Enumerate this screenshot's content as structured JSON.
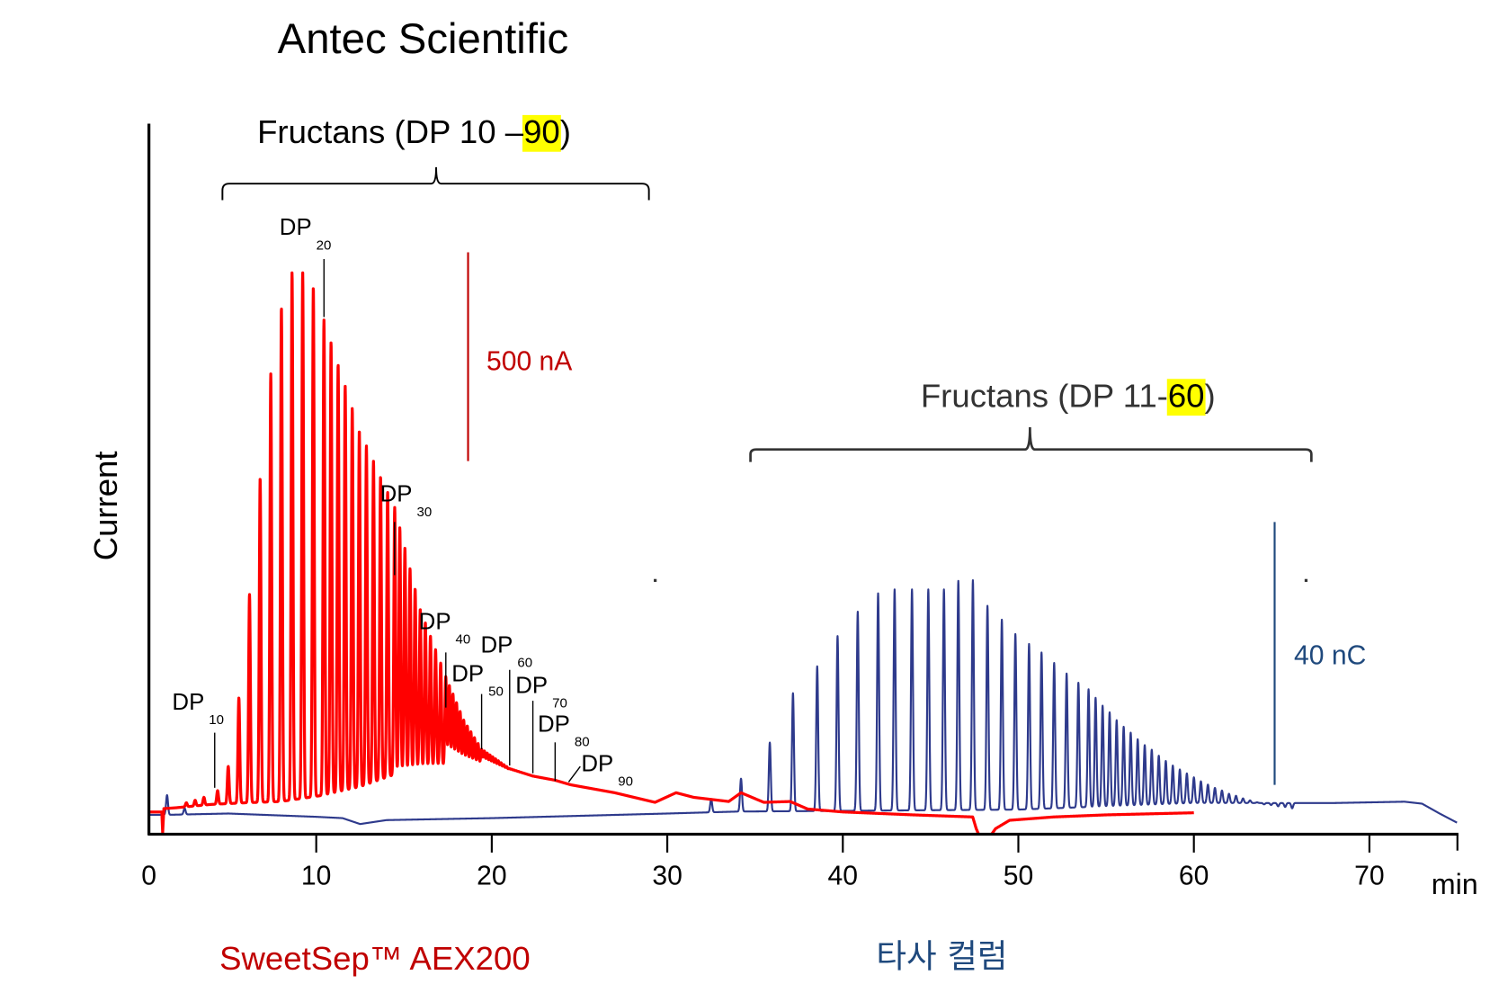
{
  "chart_data": {
    "type": "line",
    "title": "Antec Scientific",
    "ylabel": "Current",
    "xlabel": "min",
    "xlim": [
      0,
      75
    ],
    "x_ticks": [
      "0",
      "10",
      "20",
      "30",
      "40",
      "50",
      "60",
      "70"
    ],
    "x_tick_values": [
      0,
      10,
      20,
      30,
      40,
      50,
      60,
      70
    ],
    "grid": false,
    "legend": {
      "left": "SweetSep™ AEX200",
      "right": "타사 컬럼"
    },
    "colors": {
      "red_series": "#ff0000",
      "red_text": "#c00000",
      "blue_series": "#2e3a8c",
      "blue_text": "#1f497d",
      "highlight": "#ffff00"
    },
    "annotations": {
      "red_group": {
        "prefix": "Fructans (DP 10 – ",
        "highlight": "90",
        "suffix": ")"
      },
      "blue_group": {
        "prefix": "Fructans (DP 11-",
        "highlight": "60",
        "suffix": ")"
      },
      "red_scale": {
        "label": "500 nA",
        "value": 500,
        "unit": "nA"
      },
      "blue_scale": {
        "label": "40 nC",
        "value": 40,
        "unit": "nC"
      },
      "dp_labels": [
        {
          "dp": 10,
          "main": "DP",
          "sub": "10"
        },
        {
          "dp": 20,
          "main": "DP",
          "sub": "20"
        },
        {
          "dp": 30,
          "main": "DP",
          "sub": "30"
        },
        {
          "dp": 40,
          "main": "DP",
          "sub": "40"
        },
        {
          "dp": 50,
          "main": "DP",
          "sub": "50"
        },
        {
          "dp": 60,
          "main": "DP",
          "sub": "60"
        },
        {
          "dp": 70,
          "main": "DP",
          "sub": "70"
        },
        {
          "dp": 80,
          "main": "DP",
          "sub": "80"
        },
        {
          "dp": 90,
          "main": "DP",
          "sub": "90"
        }
      ]
    },
    "series": [
      {
        "name": "SweetSep™ AEX200",
        "unit": "nA",
        "dp_range": [
          10,
          90
        ],
        "dp_retention_time_anchors": [
          [
            10,
            4.38
          ],
          [
            20,
            10.44
          ],
          [
            30,
            14.47
          ],
          [
            40,
            17.38
          ],
          [
            50,
            19.42
          ],
          [
            60,
            21.0
          ],
          [
            70,
            22.33
          ],
          [
            80,
            23.6
          ],
          [
            90,
            24.5
          ]
        ],
        "dp_peak_height_envelope": [
          [
            10,
            51
          ],
          [
            11,
            109
          ],
          [
            12,
            273
          ],
          [
            13,
            521
          ],
          [
            14,
            799
          ],
          [
            15,
            1049
          ],
          [
            16,
            1208
          ],
          [
            17,
            1292
          ],
          [
            18,
            1292
          ],
          [
            19,
            1257
          ],
          [
            20,
            1178
          ],
          [
            25,
            914
          ],
          [
            30,
            729
          ],
          [
            35,
            486
          ],
          [
            40,
            324
          ],
          [
            45,
            220
          ],
          [
            50,
            150
          ],
          [
            60,
            104
          ],
          [
            70,
            86
          ],
          [
            80,
            76
          ],
          [
            90,
            65
          ]
        ],
        "minor_peaks": [
          [
            2.6,
            22
          ],
          [
            3.1,
            28
          ],
          [
            3.6,
            35
          ]
        ],
        "baseline": [
          [
            [
              0.47,
              0
            ],
            [
              1.2,
              0
            ],
            [
              1.25,
              -50
            ],
            [
              1.32,
              8
            ],
            [
              2,
              10
            ],
            [
              4,
              18
            ],
            [
              6,
              22
            ],
            [
              8,
              25
            ],
            [
              10.4,
              40
            ],
            [
              12.5,
              60
            ],
            [
              14.5,
              90
            ],
            [
              16,
              105
            ],
            [
              17.4,
              110
            ],
            [
              19.4,
              110
            ],
            [
              21,
              100
            ],
            [
              22.3,
              88
            ],
            [
              23.6,
              76
            ],
            [
              24.5,
              65
            ],
            [
              27,
              46
            ],
            [
              29.3,
              23
            ],
            [
              30.5,
              46
            ],
            [
              31.5,
              35
            ],
            [
              33.5,
              25
            ],
            [
              34.2,
              46
            ],
            [
              35.5,
              23
            ],
            [
              37,
              25
            ],
            [
              38,
              7
            ],
            [
              40,
              0
            ],
            [
              44,
              -7
            ],
            [
              47.4,
              -12
            ],
            [
              47.6,
              -40
            ],
            [
              47.75,
              -55
            ]
          ],
          [
            [
              48.45,
              -55
            ],
            [
              48.7,
              -40
            ],
            [
              49.5,
              -20
            ],
            [
              52,
              -12
            ],
            [
              55,
              -7
            ],
            [
              60,
              -2
            ]
          ]
        ]
      },
      {
        "name": "타사 컬럼",
        "unit": "nC",
        "dp_range": [
          11,
          60
        ],
        "peaks": [
          [
            35.84,
            11.0
          ],
          [
            37.16,
            18.5
          ],
          [
            38.54,
            22.6
          ],
          [
            39.7,
            27.2
          ],
          [
            40.85,
            30.9
          ],
          [
            42.01,
            33.7
          ],
          [
            42.95,
            34.3
          ],
          [
            43.94,
            34.3
          ],
          [
            44.87,
            34.3
          ],
          [
            45.76,
            34.3
          ],
          [
            46.58,
            35.6
          ],
          [
            47.41,
            35.7
          ],
          [
            48.24,
            31.8
          ],
          [
            49.06,
            29.7
          ],
          [
            49.83,
            27.5
          ],
          [
            50.61,
            26.0
          ],
          [
            51.32,
            24.7
          ],
          [
            52.04,
            23.1
          ],
          [
            52.75,
            21.5
          ],
          [
            53.42,
            20.1
          ],
          [
            54.0,
            19.1
          ],
          [
            54.4,
            17.8
          ],
          [
            54.8,
            16.6
          ],
          [
            55.2,
            15.6
          ],
          [
            55.6,
            14.4
          ],
          [
            56.0,
            13.4
          ],
          [
            56.4,
            12.5
          ],
          [
            56.8,
            11.5
          ],
          [
            57.2,
            10.6
          ],
          [
            57.6,
            9.9
          ],
          [
            58.0,
            9.0
          ],
          [
            58.4,
            8.2
          ],
          [
            58.8,
            7.5
          ],
          [
            59.2,
            6.9
          ],
          [
            59.6,
            6.3
          ],
          [
            60.0,
            5.7
          ],
          [
            60.4,
            5.1
          ],
          [
            60.8,
            4.6
          ],
          [
            61.2,
            4.1
          ],
          [
            61.6,
            3.7
          ],
          [
            62.0,
            3.2
          ],
          [
            62.4,
            2.9
          ],
          [
            62.8,
            2.5
          ],
          [
            63.2,
            2.2
          ],
          [
            63.6,
            1.9
          ],
          [
            64.0,
            1.6
          ],
          [
            64.4,
            1.5
          ],
          [
            64.8,
            1.3
          ],
          [
            65.2,
            1.2
          ],
          [
            65.6,
            1.0
          ]
        ],
        "minor_peaks": [
          [
            1.5,
            3.0
          ],
          [
            2.5,
            1.0
          ],
          [
            32.5,
            2.4
          ],
          [
            34.2,
            5.5
          ]
        ],
        "baseline": [
          [
            0.47,
            0
          ],
          [
            1.5,
            0
          ],
          [
            5,
            0.2
          ],
          [
            10,
            -0.3
          ],
          [
            11.5,
            -0.5
          ],
          [
            12.5,
            -1.4
          ],
          [
            14,
            -0.8
          ],
          [
            20,
            -0.5
          ],
          [
            30,
            0.2
          ],
          [
            34,
            0.5
          ],
          [
            50,
            0.8
          ],
          [
            55,
            1.3
          ],
          [
            60,
            1.8
          ],
          [
            68,
            1.8
          ],
          [
            72,
            2.0
          ],
          [
            73,
            1.7
          ],
          [
            74,
            0.2
          ],
          [
            75,
            -1.2
          ]
        ]
      }
    ]
  }
}
